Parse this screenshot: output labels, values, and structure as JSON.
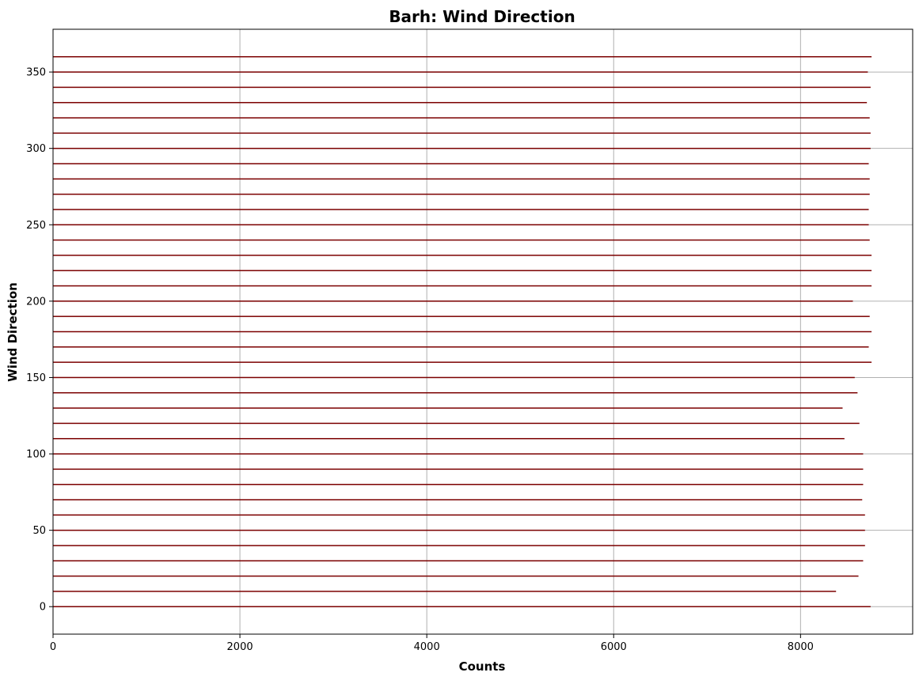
{
  "chart_data": {
    "type": "bar",
    "orientation": "horizontal",
    "title": "Barh: Wind Direction",
    "xlabel": "Counts",
    "ylabel": "Wind Direction",
    "xlim": [
      0,
      9200
    ],
    "ylim": [
      -18,
      378
    ],
    "xticks": [
      0,
      2000,
      4000,
      6000,
      8000
    ],
    "yticks": [
      0,
      50,
      100,
      150,
      200,
      250,
      300,
      350
    ],
    "grid": true,
    "bar_color": "#7b0000",
    "directions": [
      0,
      10,
      20,
      30,
      40,
      50,
      60,
      70,
      80,
      90,
      100,
      110,
      120,
      130,
      140,
      150,
      160,
      170,
      180,
      190,
      200,
      210,
      220,
      230,
      240,
      250,
      260,
      270,
      280,
      290,
      300,
      310,
      320,
      330,
      340,
      350,
      360
    ],
    "values": [
      8750,
      8380,
      8620,
      8670,
      8690,
      8690,
      8690,
      8660,
      8670,
      8670,
      8670,
      8470,
      8630,
      8450,
      8610,
      8580,
      8760,
      8730,
      8760,
      8740,
      8560,
      8760,
      8760,
      8760,
      8740,
      8730,
      8730,
      8740,
      8740,
      8730,
      8750,
      8750,
      8740,
      8710,
      8750,
      8720,
      8760
    ]
  }
}
